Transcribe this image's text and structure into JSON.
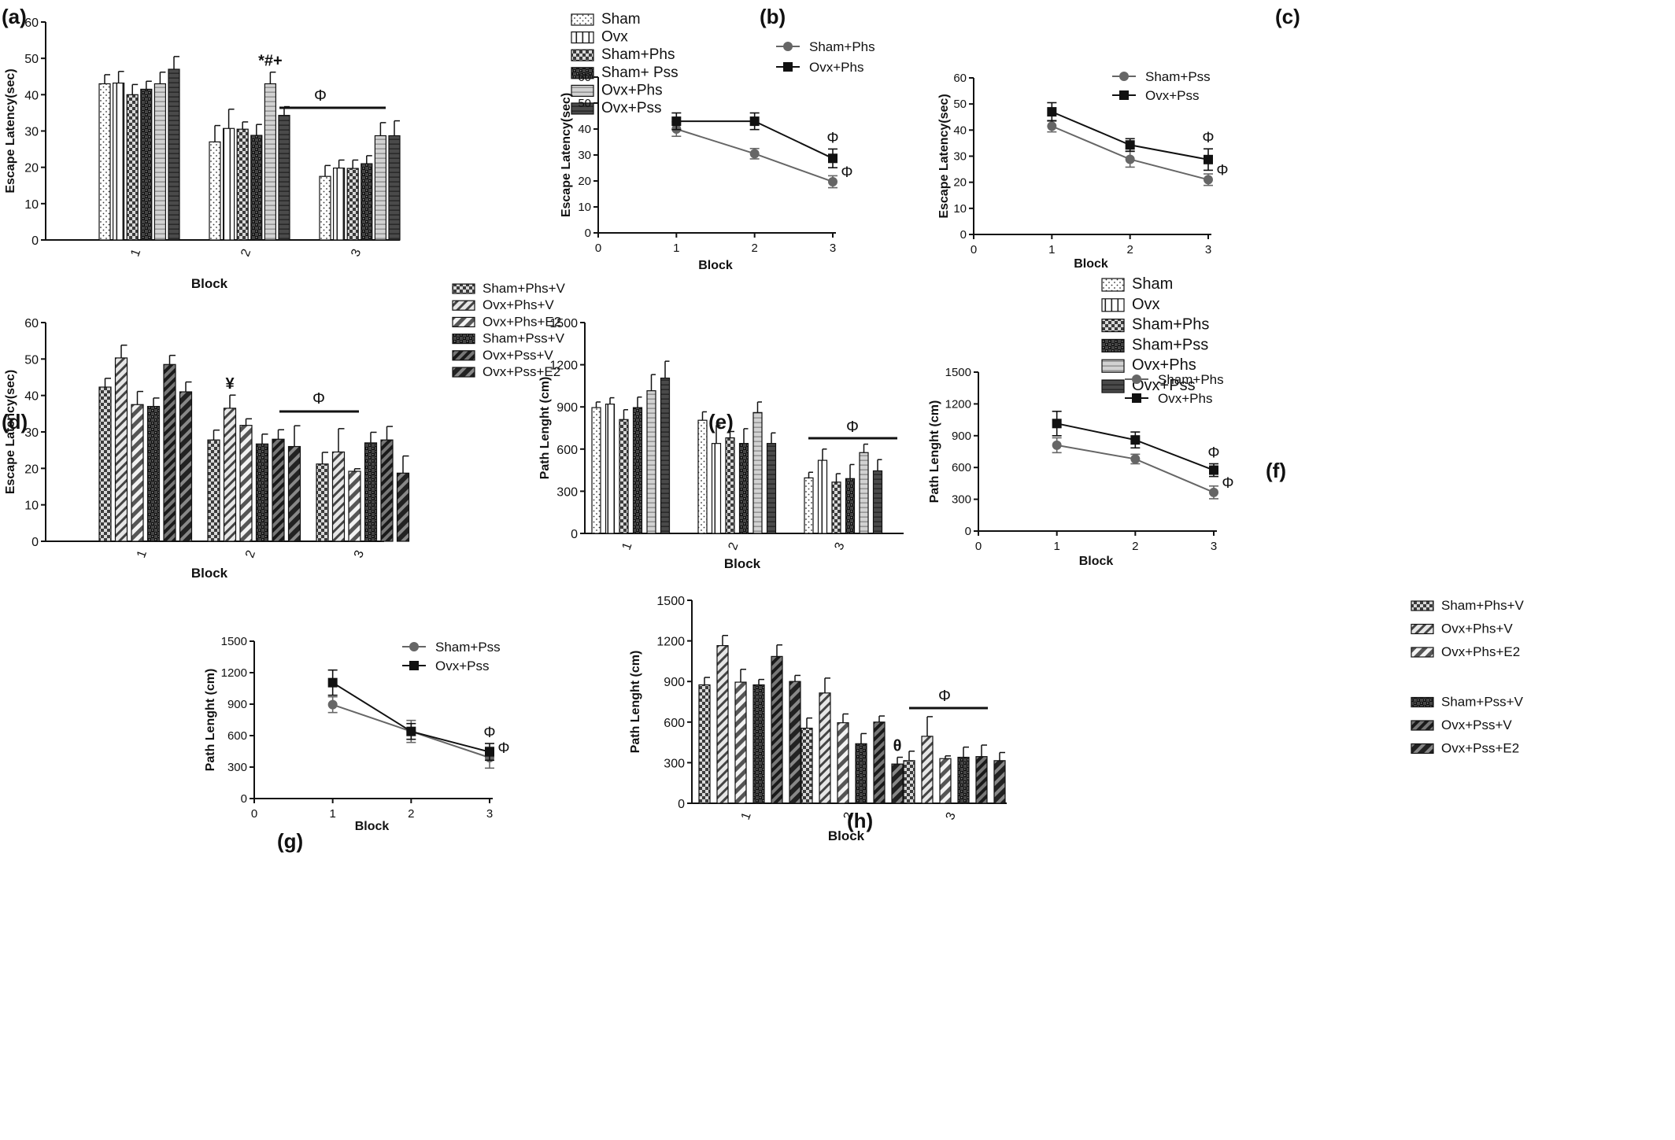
{
  "colors": {
    "ink": "#111111",
    "line_gray": "#666666",
    "light_gray": "#bdbdbd",
    "dark_gray": "#3a3a3a"
  },
  "chart_data": [
    {
      "panel": "(a)",
      "type": "bar",
      "xlabel": "Block",
      "ylabel": "Escape Latency(sec)",
      "categories": [
        "1",
        "2",
        "3"
      ],
      "ylim": [
        0,
        60
      ],
      "yticks": [
        0,
        10,
        20,
        30,
        40,
        50,
        60
      ],
      "series": [
        {
          "name": "Sham",
          "pattern": "dots",
          "values": [
            43,
            27,
            17.5
          ],
          "errors": [
            2.5,
            4.5,
            3
          ]
        },
        {
          "name": "Ovx",
          "pattern": "vlines",
          "values": [
            43.2,
            30.7,
            19.8
          ],
          "errors": [
            3.2,
            5.3,
            2.2
          ]
        },
        {
          "name": "Sham+Phs",
          "pattern": "checker-light",
          "values": [
            40,
            30.5,
            19.7
          ],
          "errors": [
            2.8,
            2,
            2.3
          ]
        },
        {
          "name": "Sham+ Pss",
          "pattern": "checker-dark",
          "values": [
            41.5,
            28.8,
            21
          ],
          "errors": [
            2.2,
            3,
            2.2
          ]
        },
        {
          "name": "Ovx+Phs",
          "pattern": "hlines",
          "values": [
            43,
            43,
            28.7
          ],
          "errors": [
            3.2,
            3.2,
            3.6
          ]
        },
        {
          "name": "Ovx+Pss",
          "pattern": "dark-hlines",
          "values": [
            47,
            34.3,
            28.7
          ],
          "errors": [
            3.5,
            2.4,
            4.1
          ]
        }
      ],
      "annotations": [
        {
          "text": "*#+",
          "category": "2",
          "series": "Ovx+Phs"
        },
        {
          "text": "Φ",
          "category": "3",
          "bar": true
        }
      ]
    },
    {
      "panel": "(b)",
      "type": "line",
      "xlabel": "Block",
      "ylabel": "Escape Latency(sec)",
      "x": [
        1,
        2,
        3
      ],
      "xlim": [
        0,
        3
      ],
      "xticks": [
        0,
        1,
        2,
        3
      ],
      "ylim": [
        0,
        60
      ],
      "yticks": [
        0,
        10,
        20,
        30,
        40,
        50,
        60
      ],
      "series": [
        {
          "name": "Sham+Phs",
          "marker": "circle",
          "values": [
            40,
            30.5,
            19.7
          ],
          "errors": [
            2.8,
            2,
            2.3
          ]
        },
        {
          "name": "Ovx+Phs",
          "marker": "square",
          "values": [
            43,
            43,
            28.7
          ],
          "errors": [
            3.2,
            3.2,
            3.6
          ]
        }
      ],
      "annotations": [
        {
          "text": "Φ",
          "series": "Ovx+Phs",
          "x": 3
        },
        {
          "text": "Φ",
          "series": "Sham+Phs",
          "x": 3
        }
      ]
    },
    {
      "panel": "(c)",
      "type": "line",
      "xlabel": "Block",
      "ylabel": "Escape Latency(sec)",
      "x": [
        1,
        2,
        3
      ],
      "xlim": [
        0,
        3
      ],
      "xticks": [
        0,
        1,
        2,
        3
      ],
      "ylim": [
        0,
        60
      ],
      "yticks": [
        0,
        10,
        20,
        30,
        40,
        50,
        60
      ],
      "series": [
        {
          "name": "Sham+Pss",
          "marker": "circle",
          "values": [
            41.5,
            28.8,
            21
          ],
          "errors": [
            2.2,
            3,
            2.2
          ]
        },
        {
          "name": "Ovx+Pss",
          "marker": "square",
          "values": [
            47,
            34.3,
            28.7
          ],
          "errors": [
            3.5,
            2.4,
            4.1
          ]
        }
      ],
      "annotations": [
        {
          "text": "Φ",
          "series": "Ovx+Pss",
          "x": 3
        },
        {
          "text": "Φ",
          "series": "Sham+Pss",
          "x": 3
        }
      ]
    },
    {
      "panel": "(d)",
      "type": "bar",
      "xlabel": "Block",
      "ylabel": "Escape Latency(sec)",
      "categories": [
        "1",
        "2",
        "3"
      ],
      "ylim": [
        0,
        60
      ],
      "yticks": [
        0,
        10,
        20,
        30,
        40,
        50,
        60
      ],
      "series": [
        {
          "name": "Sham+Phs+V",
          "pattern": "checker-light",
          "values": [
            42.3,
            27.8,
            21.2
          ],
          "errors": [
            2.4,
            2.7,
            3.2
          ]
        },
        {
          "name": "Ovx+Phs+V",
          "pattern": "diag-light",
          "values": [
            50.3,
            36.5,
            24.5
          ],
          "errors": [
            3.5,
            3.6,
            6.4
          ]
        },
        {
          "name": "Ovx+Phs+E2",
          "pattern": "diag-wide",
          "values": [
            37.5,
            31.8,
            19.2
          ],
          "errors": [
            3.6,
            1.8,
            0.7
          ]
        },
        {
          "name": "Sham+Pss+V",
          "pattern": "checker-dark",
          "values": [
            37,
            26.7,
            27
          ],
          "errors": [
            2.3,
            2.7,
            2.9
          ]
        },
        {
          "name": "Ovx+Pss+V",
          "pattern": "diag-dark",
          "values": [
            48.5,
            28,
            27.8
          ],
          "errors": [
            2.5,
            2.6,
            3.7
          ]
        },
        {
          "name": "Ovx+Pss+E2",
          "pattern": "diag-dark-wide",
          "values": [
            41,
            26,
            18.7
          ],
          "errors": [
            2.7,
            5.7,
            4.7
          ]
        }
      ],
      "annotations": [
        {
          "text": "¥",
          "category": "2",
          "series": "Ovx+Phs+V"
        },
        {
          "text": "Φ",
          "category": "3",
          "bar": true
        }
      ]
    },
    {
      "panel": "(e)",
      "type": "bar",
      "xlabel": "Block",
      "ylabel": "Path Lenght (cm)",
      "categories": [
        "1",
        "2",
        "3"
      ],
      "ylim": [
        0,
        1500
      ],
      "yticks": [
        0,
        300,
        600,
        900,
        1200,
        1500
      ],
      "series": [
        {
          "name": "Sham",
          "pattern": "dots",
          "values": [
            895,
            805,
            395
          ],
          "errors": [
            40,
            60,
            40
          ]
        },
        {
          "name": "Ovx",
          "pattern": "vlines",
          "values": [
            920,
            640,
            520
          ],
          "errors": [
            45,
            130,
            80
          ]
        },
        {
          "name": "Sham+Phs",
          "pattern": "checker-light",
          "values": [
            810,
            680,
            365
          ],
          "errors": [
            70,
            45,
            60
          ]
        },
        {
          "name": "Sham+Pss",
          "pattern": "checker-dark",
          "values": [
            895,
            640,
            390
          ],
          "errors": [
            75,
            105,
            100
          ]
        },
        {
          "name": "Ovx+Phs",
          "pattern": "hlines",
          "values": [
            1015,
            860,
            575
          ],
          "errors": [
            115,
            75,
            60
          ]
        },
        {
          "name": "Ovx+Pss",
          "pattern": "dark-hlines",
          "values": [
            1105,
            640,
            445
          ],
          "errors": [
            120,
            75,
            80
          ]
        }
      ],
      "annotations": [
        {
          "text": "Φ",
          "category": "3",
          "bar": true
        }
      ]
    },
    {
      "panel": "(f)",
      "type": "line",
      "xlabel": "Block",
      "ylabel": "Path Lenght (cm)",
      "x": [
        1,
        2,
        3
      ],
      "xlim": [
        0,
        3
      ],
      "xticks": [
        0,
        1,
        2,
        3
      ],
      "ylim": [
        0,
        1500
      ],
      "yticks": [
        0,
        300,
        600,
        900,
        1200,
        1500
      ],
      "series": [
        {
          "name": "Sham+Phs",
          "marker": "circle",
          "values": [
            810,
            680,
            365
          ],
          "errors": [
            70,
            45,
            60
          ]
        },
        {
          "name": "Ovx+Phs",
          "marker": "square",
          "values": [
            1015,
            860,
            575
          ],
          "errors": [
            115,
            75,
            60
          ]
        }
      ],
      "annotations": [
        {
          "text": "Φ",
          "series": "Ovx+Phs",
          "x": 3
        },
        {
          "text": "Φ",
          "series": "Sham+Phs",
          "x": 3
        }
      ]
    },
    {
      "panel": "(g)",
      "type": "line",
      "xlabel": "Block",
      "ylabel": "Path Lenght (cm)",
      "x": [
        1,
        2,
        3
      ],
      "xlim": [
        0,
        3
      ],
      "xticks": [
        0,
        1,
        2,
        3
      ],
      "ylim": [
        0,
        1500
      ],
      "yticks": [
        0,
        300,
        600,
        900,
        1200,
        1500
      ],
      "series": [
        {
          "name": "Sham+Pss",
          "marker": "circle",
          "values": [
            895,
            640,
            390
          ],
          "errors": [
            75,
            105,
            100
          ]
        },
        {
          "name": "Ovx+Pss",
          "marker": "square",
          "values": [
            1105,
            640,
            445
          ],
          "errors": [
            120,
            75,
            80
          ]
        }
      ],
      "annotations": [
        {
          "text": "Φ",
          "series": "Ovx+Pss",
          "x": 3
        },
        {
          "text": "Φ",
          "series": "Sham+Pss",
          "x": 3
        }
      ]
    },
    {
      "panel": "(h)",
      "type": "bar",
      "xlabel": "Block",
      "ylabel": "Path Lenght (cm)",
      "categories": [
        "1",
        "2",
        "3"
      ],
      "ylim": [
        0,
        1500
      ],
      "yticks": [
        0,
        300,
        600,
        900,
        1200,
        1500
      ],
      "series": [
        {
          "name": "Sham+Phs+V",
          "pattern": "checker-light",
          "values": [
            875,
            555,
            315
          ],
          "errors": [
            55,
            75,
            70
          ]
        },
        {
          "name": "Ovx+Phs+V",
          "pattern": "diag-light",
          "values": [
            1165,
            815,
            495
          ],
          "errors": [
            75,
            110,
            145
          ]
        },
        {
          "name": "Ovx+Phs+E2",
          "pattern": "diag-wide",
          "values": [
            895,
            595,
            330
          ],
          "errors": [
            95,
            65,
            20
          ]
        },
        {
          "name": "Sham+Pss+V",
          "pattern": "checker-dark",
          "values": [
            875,
            440,
            340
          ],
          "errors": [
            40,
            75,
            75
          ]
        },
        {
          "name": "Ovx+Pss+V",
          "pattern": "diag-dark",
          "values": [
            1085,
            600,
            345
          ],
          "errors": [
            85,
            45,
            85
          ]
        },
        {
          "name": "Ovx+Pss+E2",
          "pattern": "diag-dark-wide",
          "values": [
            900,
            290,
            315
          ],
          "errors": [
            45,
            50,
            60
          ]
        }
      ],
      "annotations": [
        {
          "text": "θ",
          "category": "2",
          "series": "Ovx+Pss+E2"
        },
        {
          "text": "Φ",
          "category": "3",
          "bar": true
        }
      ]
    }
  ]
}
